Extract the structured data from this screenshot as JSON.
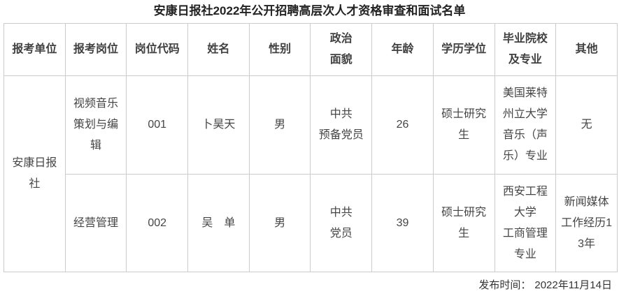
{
  "page": {
    "title": "安康日报社2022年公开招聘高层次人才资格审查和面试名单",
    "publish_label": "发布时间：",
    "publish_date": "2022年11月14日"
  },
  "colors": {
    "border": "#cccccc",
    "title_text": "#222222",
    "body_text": "#454545"
  },
  "table": {
    "headers": [
      "报考单位",
      "报考岗位",
      "岗位代码",
      "姓名",
      "性别",
      "政治\n面貌",
      "年龄",
      "学历学位",
      "毕业院校\n及专业",
      "其他"
    ],
    "unit": "安康日报\n社",
    "rows": [
      {
        "post": "视频音乐\n策划与编\n辑",
        "code": "001",
        "name": "卜昊天",
        "gender": "男",
        "politics": "中共\n预备党员",
        "age": "26",
        "degree": "硕士研究\n生",
        "school": "美国莱特\n州立大学\n音乐（声\n乐）专业",
        "other": "无"
      },
      {
        "post": "经营管理",
        "code": "002",
        "name": "吴　单",
        "gender": "男",
        "politics": "中共\n党员",
        "age": "39",
        "degree": "硕士研究\n生",
        "school": "西安工程\n大学\n工商管理\n专业",
        "other": "新闻媒体\n工作经历1\n3年"
      }
    ]
  }
}
